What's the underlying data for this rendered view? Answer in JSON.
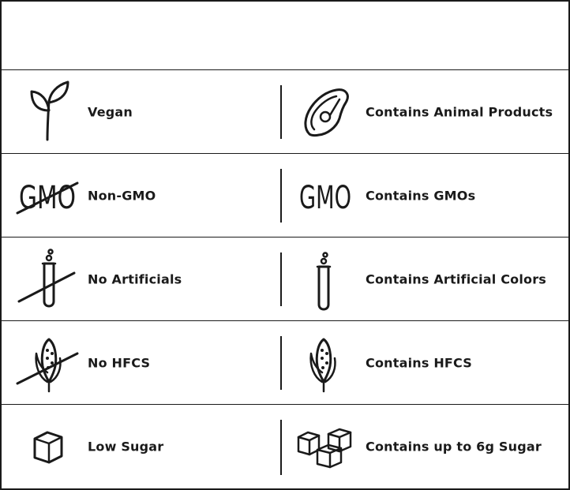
{
  "rows": [
    {
      "left": {
        "label": "Vegan",
        "icon": "sprout-icon"
      },
      "right": {
        "label": "Contains Animal Products",
        "icon": "steak-icon"
      }
    },
    {
      "left": {
        "label": "Non-GMO",
        "icon": "gmo-crossed-icon",
        "icon_text": "GMO"
      },
      "right": {
        "label": "Contains GMOs",
        "icon": "gmo-icon",
        "icon_text": "GMO"
      }
    },
    {
      "left": {
        "label": "No Artificials",
        "icon": "test-tube-crossed-icon"
      },
      "right": {
        "label": "Contains Artificial Colors",
        "icon": "test-tube-icon"
      }
    },
    {
      "left": {
        "label": "No HFCS",
        "icon": "corn-crossed-icon"
      },
      "right": {
        "label": "Contains HFCS",
        "icon": "corn-icon"
      }
    },
    {
      "left": {
        "label": "Low Sugar",
        "icon": "sugar-cube-icon"
      },
      "right": {
        "label": "Contains up to 6g Sugar",
        "icon": "sugar-cubes-icon"
      }
    }
  ],
  "colors": {
    "ink": "#1a1a1a",
    "background": "#ffffff"
  }
}
